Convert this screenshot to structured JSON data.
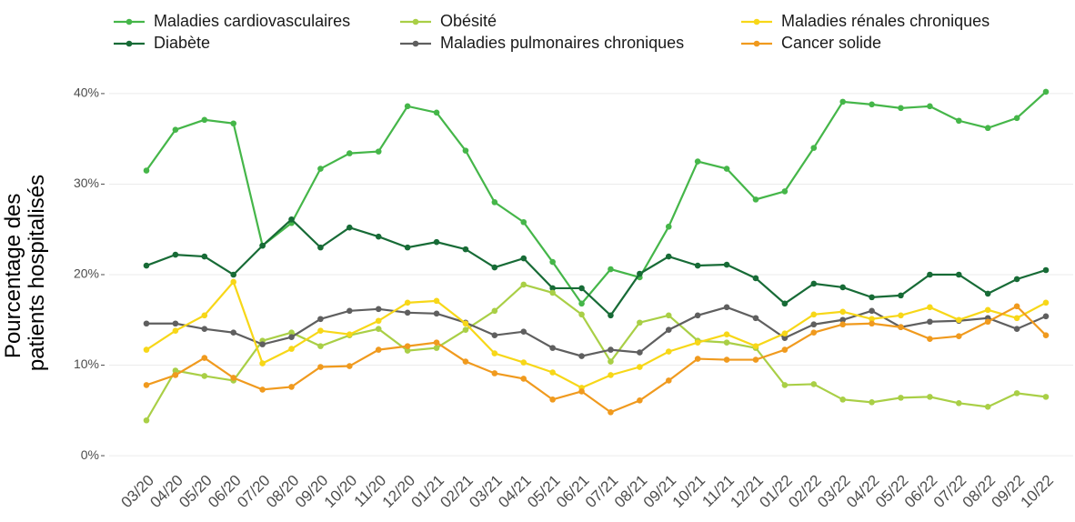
{
  "chart_data": {
    "type": "line",
    "ylabel": [
      "Pourcentage des",
      "patients hospitalisés"
    ],
    "categories": [
      "03/20",
      "04/20",
      "05/20",
      "06/20",
      "07/20",
      "08/20",
      "09/20",
      "10/20",
      "11/20",
      "12/20",
      "01/21",
      "02/21",
      "03/21",
      "04/21",
      "05/21",
      "06/21",
      "07/21",
      "08/21",
      "09/21",
      "10/21",
      "11/21",
      "12/21",
      "01/22",
      "02/22",
      "03/22",
      "04/22",
      "05/22",
      "06/22",
      "07/22",
      "08/22",
      "09/22",
      "10/22"
    ],
    "series": [
      {
        "name": "Maladies cardiovasculaires",
        "color": "#45b649",
        "values": [
          31.5,
          36.0,
          37.1,
          36.7,
          23.2,
          25.7,
          31.7,
          33.4,
          33.6,
          38.6,
          37.9,
          33.7,
          28.0,
          25.8,
          21.4,
          16.8,
          20.6,
          19.7,
          25.3,
          32.5,
          31.7,
          28.3,
          29.2,
          34.0,
          39.1,
          38.8,
          38.4,
          38.6,
          37.0,
          36.2,
          37.3,
          40.2
        ]
      },
      {
        "name": "Diabète",
        "color": "#176b36",
        "values": [
          21.0,
          22.2,
          22.0,
          20.0,
          23.2,
          26.1,
          23.0,
          25.2,
          24.2,
          23.0,
          23.6,
          22.8,
          20.8,
          21.8,
          18.5,
          18.5,
          15.5,
          20.1,
          22.0,
          21.0,
          21.1,
          19.6,
          16.8,
          19.0,
          18.6,
          17.5,
          17.7,
          20.0,
          20.0,
          17.9,
          19.5,
          20.5
        ]
      },
      {
        "name": "Obésité",
        "color": "#a9cf46",
        "values": [
          3.9,
          9.4,
          8.8,
          8.3,
          12.7,
          13.6,
          12.1,
          13.3,
          14.0,
          11.6,
          11.9,
          13.9,
          16.0,
          18.9,
          18.0,
          15.6,
          10.4,
          14.7,
          15.5,
          12.7,
          12.5,
          11.9,
          7.8,
          7.9,
          6.2,
          5.9,
          6.4,
          6.5,
          5.8,
          5.4,
          6.9,
          6.5
        ]
      },
      {
        "name": "Maladies pulmonaires chroniques",
        "color": "#5f5f5f",
        "values": [
          14.6,
          14.6,
          14.0,
          13.6,
          12.3,
          13.1,
          15.1,
          16.0,
          16.2,
          15.8,
          15.7,
          14.7,
          13.3,
          13.7,
          11.9,
          11.0,
          11.7,
          11.4,
          13.9,
          15.5,
          16.4,
          15.2,
          13.0,
          14.5,
          15.0,
          16.0,
          14.2,
          14.8,
          14.9,
          15.2,
          14.0,
          15.4
        ]
      },
      {
        "name": "Maladies rénales chroniques",
        "color": "#f7d718",
        "values": [
          11.7,
          13.8,
          15.5,
          19.2,
          10.2,
          11.8,
          13.8,
          13.4,
          14.9,
          16.9,
          17.1,
          14.6,
          11.3,
          10.3,
          9.2,
          7.5,
          8.9,
          9.8,
          11.5,
          12.5,
          13.4,
          12.1,
          13.5,
          15.6,
          15.9,
          15.1,
          15.5,
          16.4,
          15.0,
          16.1,
          15.2,
          16.9
        ]
      },
      {
        "name": "Cancer solide",
        "color": "#f09a1e",
        "values": [
          7.8,
          8.9,
          10.8,
          8.6,
          7.3,
          7.6,
          9.8,
          9.9,
          11.7,
          12.1,
          12.5,
          10.4,
          9.1,
          8.5,
          6.2,
          7.1,
          4.8,
          6.1,
          8.3,
          10.7,
          10.6,
          10.6,
          11.7,
          13.6,
          14.5,
          14.6,
          14.2,
          12.9,
          13.2,
          14.8,
          16.5,
          13.3
        ]
      }
    ],
    "ylim": [
      -1.5,
      42
    ],
    "yticks": [
      {
        "value": 0,
        "label": "0%"
      },
      {
        "value": 10,
        "label": "10%"
      },
      {
        "value": 20,
        "label": "20%"
      },
      {
        "value": 30,
        "label": "30%"
      },
      {
        "value": 40,
        "label": "40%"
      }
    ],
    "grid": true,
    "legend": "top"
  }
}
